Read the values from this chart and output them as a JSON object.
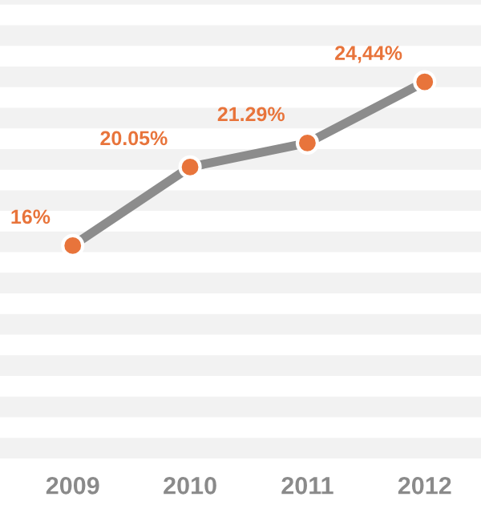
{
  "chart_data": {
    "type": "line",
    "categories": [
      "2009",
      "2010",
      "2011",
      "2012"
    ],
    "series": [
      {
        "color": "#8c8c8c",
        "values": [
          16,
          20.05,
          21.29,
          24.44
        ],
        "value_labels": [
          "16%",
          "20.05%",
          "21.29%",
          "24,44%"
        ]
      }
    ],
    "marker": "circle",
    "legend": false
  }
}
